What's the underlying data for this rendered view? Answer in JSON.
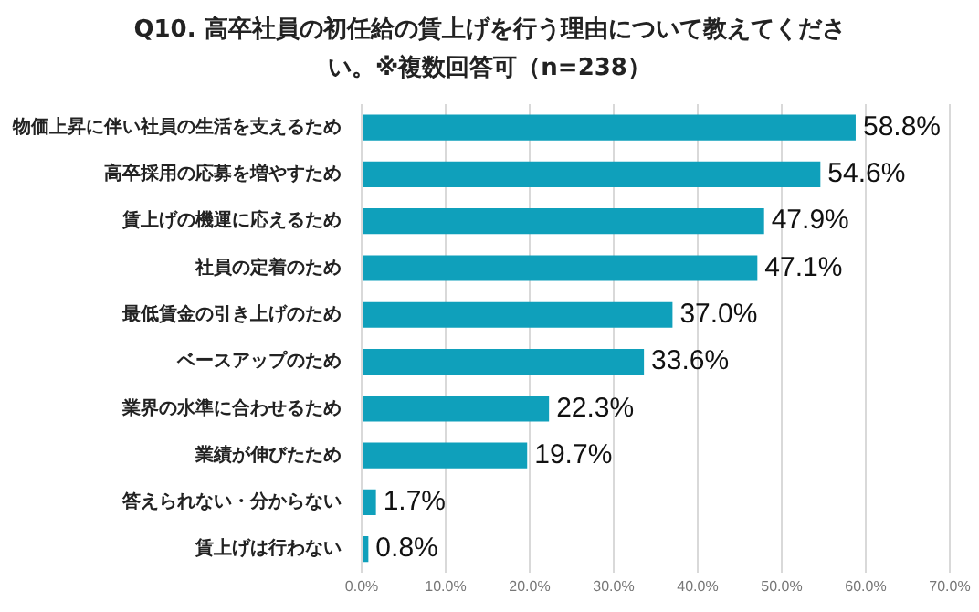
{
  "chart_data": {
    "type": "bar",
    "orientation": "horizontal",
    "title": "Q10. 高卒社員の初任給の賃上げを行う理由について教えてください。※複数回答可（n=238）",
    "categories": [
      "物価上昇に伴い社員の生活を支えるため",
      "高卒採用の応募を増やすため",
      "賃上げの機運に応えるため",
      "社員の定着のため",
      "最低賃金の引き上げのため",
      "ベースアップのため",
      "業界の水準に合わせるため",
      "業績が伸びたため",
      "答えられない・分からない",
      "賃上げは行わない"
    ],
    "values": [
      58.8,
      54.6,
      47.9,
      47.1,
      37.0,
      33.6,
      22.3,
      19.7,
      1.7,
      0.8
    ],
    "value_labels": [
      "58.8%",
      "54.6%",
      "47.9%",
      "47.1%",
      "37.0%",
      "33.6%",
      "22.3%",
      "19.7%",
      "1.7%",
      "0.8%"
    ],
    "color": "#0fa0bb",
    "xlim": [
      0,
      70
    ],
    "xticks": [
      {
        "value": 0,
        "label": "0.0%"
      },
      {
        "value": 10,
        "label": "10.0%"
      },
      {
        "value": 20,
        "label": "20.0%"
      },
      {
        "value": 30,
        "label": "30.0%"
      },
      {
        "value": 40,
        "label": "40.0%"
      },
      {
        "value": 50,
        "label": "50.0%"
      },
      {
        "value": 60,
        "label": "60.0%"
      },
      {
        "value": 70,
        "label": "70.0%"
      }
    ],
    "grid": "x",
    "legend": false
  }
}
